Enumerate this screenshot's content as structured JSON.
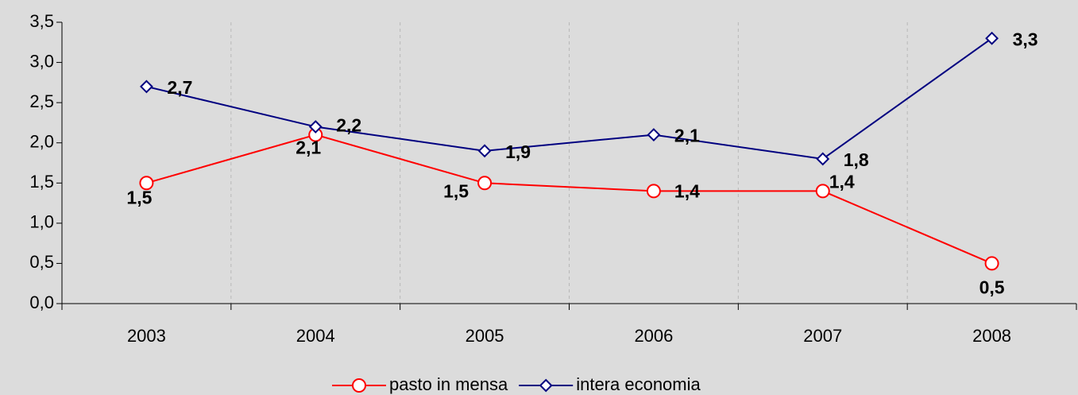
{
  "chart_data": {
    "type": "line",
    "categories": [
      "2003",
      "2004",
      "2005",
      "2006",
      "2007",
      "2008"
    ],
    "series": [
      {
        "name": "pasto in mensa",
        "color": "#ff0000",
        "label_color": "#800000",
        "marker": "circle",
        "values": [
          1.5,
          2.1,
          1.5,
          1.4,
          1.4,
          0.5
        ],
        "value_labels": [
          "1,5",
          "2,1",
          "1,5",
          "1,4",
          "1,4",
          "0,5"
        ]
      },
      {
        "name": "intera economia",
        "color": "#000080",
        "label_color": "#333399",
        "marker": "diamond",
        "values": [
          2.7,
          2.2,
          1.9,
          2.1,
          1.8,
          3.3
        ],
        "value_labels": [
          "2,7",
          "2,2",
          "1,9",
          "2,1",
          "1,8",
          "3,3"
        ]
      }
    ],
    "ylim": [
      0,
      3.5
    ],
    "yticks": [
      {
        "value": 0,
        "label": "0,0"
      },
      {
        "value": 0.5,
        "label": "0,5"
      },
      {
        "value": 1,
        "label": "1,0"
      },
      {
        "value": 1.5,
        "label": "1,5"
      },
      {
        "value": 2,
        "label": "2,0"
      },
      {
        "value": 2.5,
        "label": "2,5"
      },
      {
        "value": 3,
        "label": "3,0"
      },
      {
        "value": 3.5,
        "label": "3,5"
      }
    ],
    "legend": "bottom"
  }
}
